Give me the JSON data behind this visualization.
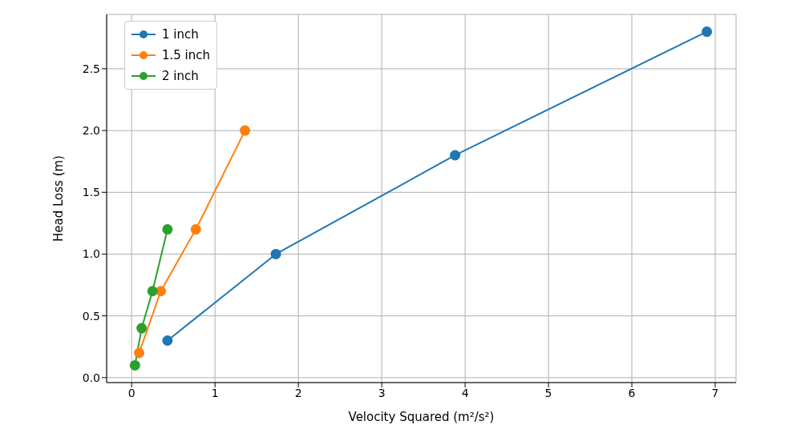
{
  "chart_data": {
    "type": "line",
    "xlabel": "Velocity Squared (m²/s²)",
    "ylabel": "Head Loss (m)",
    "xlim": [
      -0.3,
      7.25
    ],
    "ylim": [
      -0.04,
      2.94
    ],
    "xticks": [
      0,
      1,
      2,
      3,
      4,
      5,
      6,
      7
    ],
    "yticks": [
      {
        "value": 0,
        "label": "0.0"
      },
      {
        "value": 0.5,
        "label": "0.5"
      },
      {
        "value": 1,
        "label": "1.0"
      },
      {
        "value": 1.5,
        "label": "1.5"
      },
      {
        "value": 2,
        "label": "2.0"
      },
      {
        "value": 2.5,
        "label": "2.5"
      }
    ],
    "grid": true,
    "legend": "top left",
    "marker": "circle",
    "line_style": "solid",
    "series": [
      {
        "name": "1 inch",
        "color": "#1f77b4",
        "x": [
          0.43,
          1.73,
          3.88,
          6.9
        ],
        "values": [
          0.3,
          1.0,
          1.8,
          2.8
        ]
      },
      {
        "name": "1.5 inch",
        "color": "#ff7f0e",
        "x": [
          0.09,
          0.35,
          0.77,
          1.36
        ],
        "values": [
          0.2,
          0.7,
          1.2,
          2.0
        ]
      },
      {
        "name": "2 inch",
        "color": "#2ca02c",
        "x": [
          0.04,
          0.12,
          0.25,
          0.43
        ],
        "values": [
          0.1,
          0.4,
          0.7,
          1.2
        ]
      }
    ]
  }
}
